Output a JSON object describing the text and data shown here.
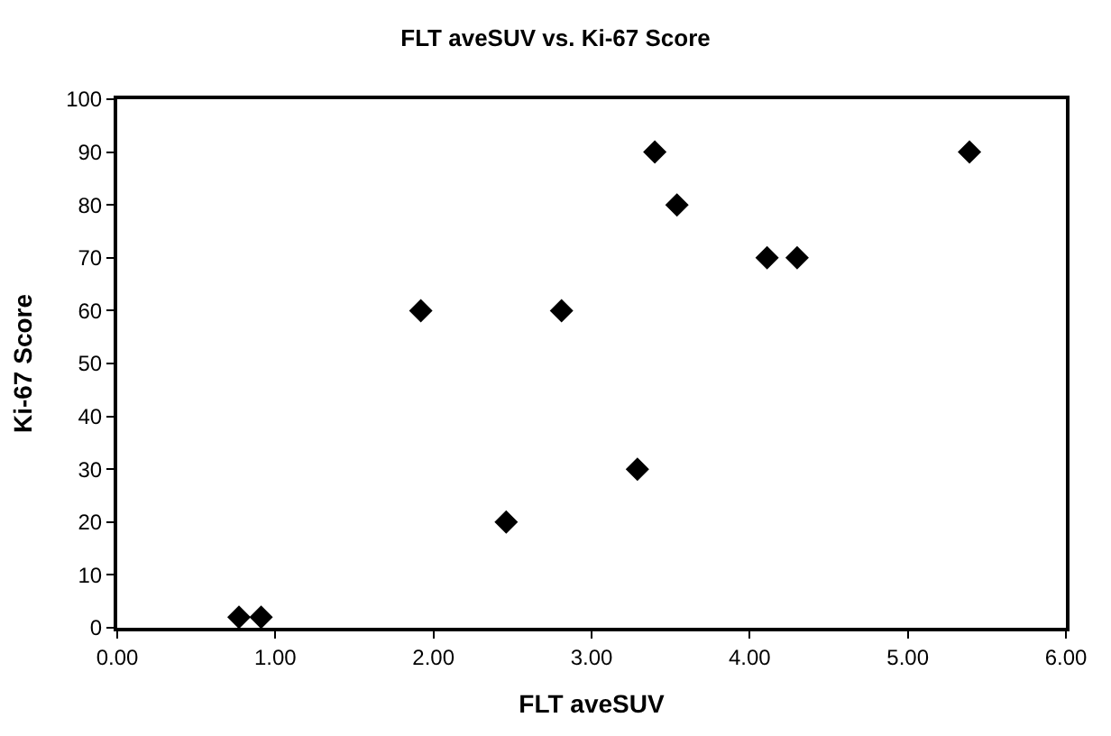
{
  "chart_data": {
    "type": "scatter",
    "title": "FLT aveSUV vs. Ki-67 Score",
    "xlabel": "FLT aveSUV",
    "ylabel": "Ki-67 Score",
    "x": [
      0.77,
      0.91,
      1.92,
      2.46,
      2.81,
      3.29,
      3.4,
      3.54,
      4.11,
      4.3,
      5.39
    ],
    "series": [
      {
        "color": "#000000",
        "values": [
          2,
          2,
          60,
          20,
          60,
          30,
          90,
          80,
          70,
          70,
          90
        ]
      }
    ],
    "xlim": [
      0,
      6
    ],
    "xticks": [
      {
        "value": 0,
        "label": "0.00"
      },
      {
        "value": 1,
        "label": "1.00"
      },
      {
        "value": 2,
        "label": "2.00"
      },
      {
        "value": 3,
        "label": "3.00"
      },
      {
        "value": 4,
        "label": "4.00"
      },
      {
        "value": 5,
        "label": "5.00"
      },
      {
        "value": 6,
        "label": "6.00"
      }
    ],
    "ylim": [
      0,
      100
    ],
    "yticks": [
      0,
      10,
      20,
      30,
      40,
      50,
      60,
      70,
      80,
      90,
      100
    ],
    "marker": "diamond"
  }
}
